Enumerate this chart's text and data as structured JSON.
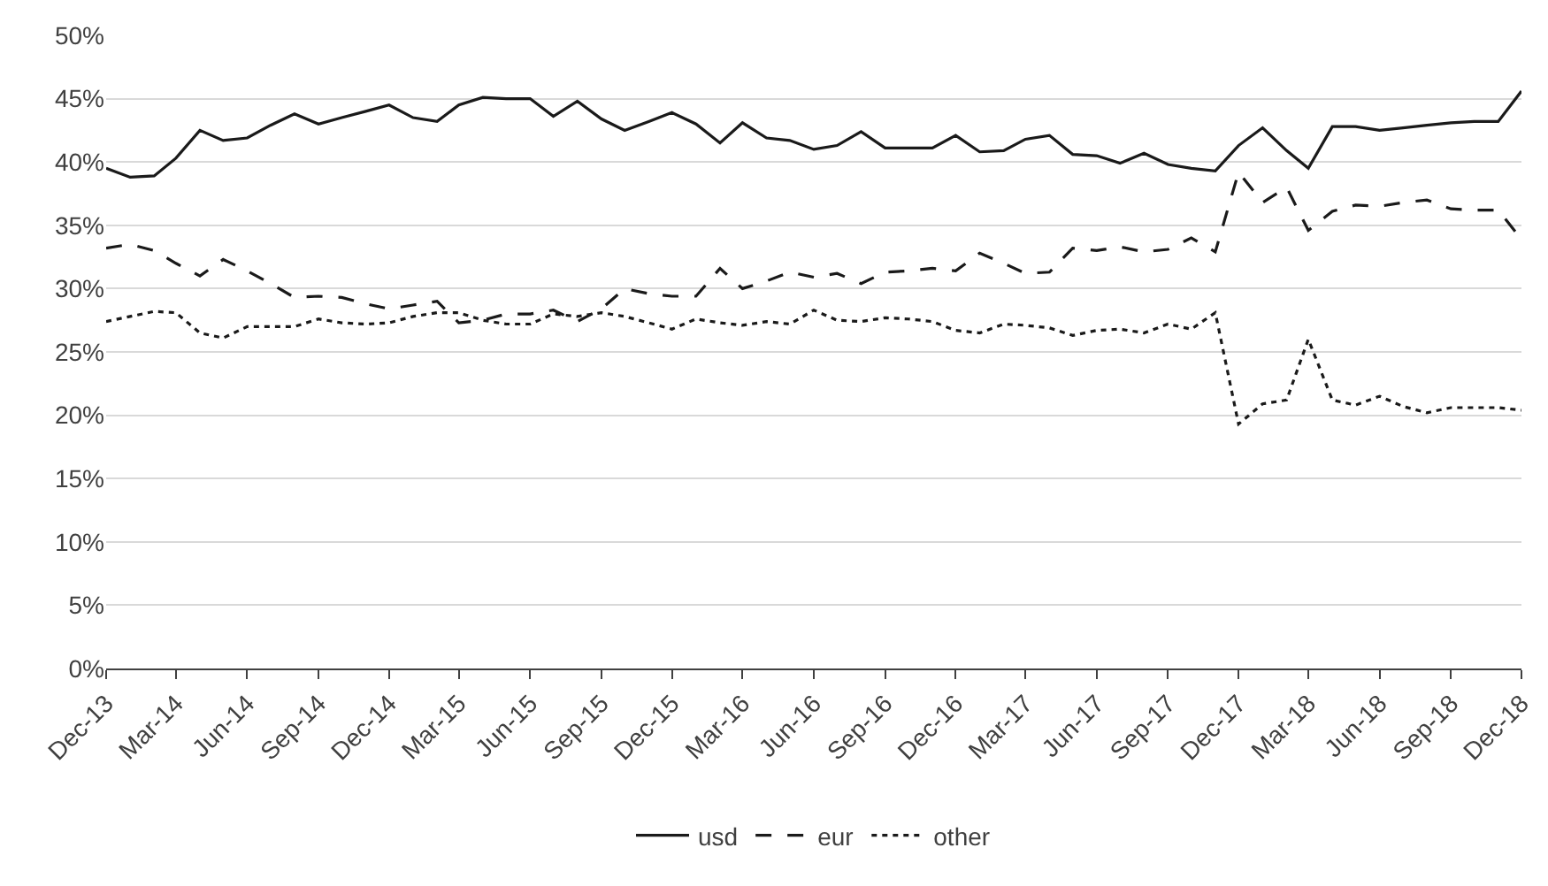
{
  "chart_data": {
    "type": "line",
    "x": [
      "2013-12",
      "2014-01",
      "2014-02",
      "2014-03",
      "2014-04",
      "2014-05",
      "2014-06",
      "2014-07",
      "2014-08",
      "2014-09",
      "2014-10",
      "2014-11",
      "2014-12",
      "2015-01",
      "2015-02",
      "2015-03",
      "2015-04",
      "2015-05",
      "2015-06",
      "2015-07",
      "2015-08",
      "2015-09",
      "2015-10",
      "2015-11",
      "2015-12",
      "2016-01",
      "2016-02",
      "2016-03",
      "2016-04",
      "2016-05",
      "2016-06",
      "2016-07",
      "2016-08",
      "2016-09",
      "2016-10",
      "2016-11",
      "2016-12",
      "2017-01",
      "2017-02",
      "2017-03",
      "2017-04",
      "2017-05",
      "2017-06",
      "2017-07",
      "2017-08",
      "2017-09",
      "2017-10",
      "2017-11",
      "2017-12",
      "2018-01",
      "2018-02",
      "2018-03",
      "2018-04",
      "2018-05",
      "2018-06",
      "2018-07",
      "2018-08",
      "2018-09",
      "2018-10",
      "2018-11",
      "2018-12"
    ],
    "series": [
      {
        "name": "usd",
        "color": "#1a1a1a",
        "line_style": "solid",
        "values": [
          39.5,
          38.8,
          38.9,
          40.3,
          42.5,
          41.7,
          41.9,
          42.9,
          43.8,
          43.0,
          43.5,
          44.0,
          44.5,
          43.5,
          43.2,
          44.5,
          45.1,
          45.0,
          45.0,
          43.6,
          44.8,
          43.4,
          42.5,
          43.2,
          43.9,
          43.0,
          41.5,
          43.1,
          41.9,
          41.7,
          41.0,
          41.3,
          42.4,
          41.1,
          41.1,
          41.1,
          42.1,
          40.8,
          40.9,
          41.8,
          42.1,
          40.6,
          40.5,
          39.9,
          40.7,
          39.8,
          39.5,
          39.3,
          41.3,
          42.7,
          40.9,
          39.5,
          42.8,
          42.8,
          42.5,
          42.7,
          42.9,
          43.1,
          43.2,
          43.2,
          45.6
        ]
      },
      {
        "name": "eur",
        "color": "#1a1a1a",
        "line_style": "dashed",
        "values": [
          33.2,
          33.5,
          33.0,
          32.0,
          31.0,
          32.3,
          31.4,
          30.4,
          29.3,
          29.4,
          29.3,
          28.8,
          28.4,
          28.7,
          29.0,
          27.3,
          27.5,
          28.0,
          28.0,
          28.3,
          27.4,
          28.4,
          30.0,
          29.6,
          29.4,
          29.4,
          31.6,
          30.0,
          30.6,
          31.3,
          30.9,
          31.2,
          30.4,
          31.3,
          31.4,
          31.6,
          31.4,
          32.8,
          32.0,
          31.2,
          31.3,
          33.2,
          33.0,
          33.3,
          32.9,
          33.1,
          34.0,
          32.9,
          39.2,
          36.8,
          38.0,
          34.6,
          36.1,
          36.6,
          36.5,
          36.8,
          37.0,
          36.3,
          36.2,
          36.2,
          33.9
        ]
      },
      {
        "name": "other",
        "color": "#1a1a1a",
        "line_style": "dotted",
        "values": [
          27.4,
          27.8,
          28.2,
          28.1,
          26.5,
          26.1,
          27.0,
          27.0,
          27.0,
          27.6,
          27.3,
          27.2,
          27.3,
          27.8,
          28.1,
          28.1,
          27.5,
          27.2,
          27.2,
          28.0,
          27.8,
          28.1,
          27.8,
          27.3,
          26.8,
          27.6,
          27.3,
          27.1,
          27.4,
          27.2,
          28.3,
          27.5,
          27.4,
          27.7,
          27.6,
          27.4,
          26.7,
          26.5,
          27.2,
          27.1,
          26.9,
          26.3,
          26.7,
          26.8,
          26.5,
          27.2,
          26.8,
          28.1,
          19.3,
          20.9,
          21.2,
          26.0,
          21.2,
          20.8,
          21.5,
          20.7,
          20.2,
          20.6,
          20.6,
          20.6,
          20.4
        ]
      }
    ],
    "xlim": [
      "2013-12",
      "2018-12"
    ],
    "xticks": [
      {
        "value": "2013-12",
        "label": "Dec-13"
      },
      {
        "value": "2014-03",
        "label": "Mar-14"
      },
      {
        "value": "2014-06",
        "label": "Jun-14"
      },
      {
        "value": "2014-09",
        "label": "Sep-14"
      },
      {
        "value": "2014-12",
        "label": "Dec-14"
      },
      {
        "value": "2015-03",
        "label": "Mar-15"
      },
      {
        "value": "2015-06",
        "label": "Jun-15"
      },
      {
        "value": "2015-09",
        "label": "Sep-15"
      },
      {
        "value": "2015-12",
        "label": "Dec-15"
      },
      {
        "value": "2016-03",
        "label": "Mar-16"
      },
      {
        "value": "2016-06",
        "label": "Jun-16"
      },
      {
        "value": "2016-09",
        "label": "Sep-16"
      },
      {
        "value": "2016-12",
        "label": "Dec-16"
      },
      {
        "value": "2017-03",
        "label": "Mar-17"
      },
      {
        "value": "2017-06",
        "label": "Jun-17"
      },
      {
        "value": "2017-09",
        "label": "Sep-17"
      },
      {
        "value": "2017-12",
        "label": "Dec-17"
      },
      {
        "value": "2018-03",
        "label": "Mar-18"
      },
      {
        "value": "2018-06",
        "label": "Jun-18"
      },
      {
        "value": "2018-09",
        "label": "Sep-18"
      },
      {
        "value": "2018-12",
        "label": "Dec-18"
      }
    ],
    "ylim": [
      0,
      50
    ],
    "yticks": [
      {
        "value": 0,
        "label": "0%"
      },
      {
        "value": 5,
        "label": "5%"
      },
      {
        "value": 10,
        "label": "10%"
      },
      {
        "value": 15,
        "label": "15%"
      },
      {
        "value": 20,
        "label": "20%"
      },
      {
        "value": 25,
        "label": "25%"
      },
      {
        "value": 30,
        "label": "30%"
      },
      {
        "value": 35,
        "label": "35%"
      },
      {
        "value": 40,
        "label": "40%"
      },
      {
        "value": 45,
        "label": "45%"
      },
      {
        "value": 50,
        "label": "50%"
      }
    ],
    "grid": "y",
    "legend": "bottom",
    "marker": "none"
  }
}
